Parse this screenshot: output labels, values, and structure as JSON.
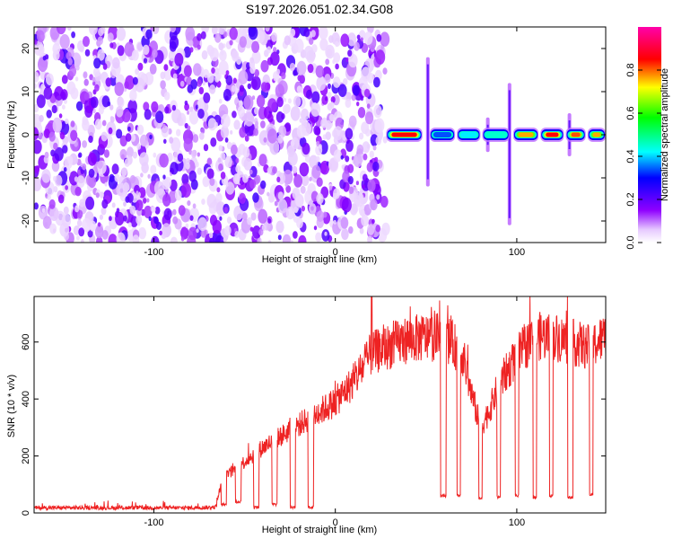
{
  "chart_data": [
    {
      "type": "heatmap",
      "title": "S197.2026.051.02.34.G08",
      "xlabel": "Height of straight line (km)",
      "ylabel": "Frequency (Hz)",
      "xlim": [
        -166,
        149
      ],
      "ylim": [
        -25,
        25
      ],
      "xticks": [
        -100,
        0,
        100
      ],
      "yticks": [
        -20,
        -10,
        0,
        10,
        20
      ],
      "colorbar": {
        "label": "Normalized spectral amplitude",
        "range": [
          0.0,
          1.0
        ],
        "ticks": [
          0.0,
          0.2,
          0.4,
          0.6,
          0.8
        ],
        "tick_labels": [
          "0.0",
          "0.2",
          "0.4",
          "0.6",
          "0.8"
        ],
        "colormap": [
          "#ffffff",
          "#8f00ff",
          "#0000ff",
          "#00ffff",
          "#00ff00",
          "#ffff00",
          "#ff0000",
          "#ff00aa"
        ]
      },
      "noise_region_x": [
        -166,
        28
      ],
      "signal_frequency_hz": 0,
      "signal_segments": [
        {
          "x0": 28,
          "x1": 48,
          "amplitude": 0.95
        },
        {
          "x0": 52,
          "x1": 66,
          "amplitude": 0.45
        },
        {
          "x0": 67,
          "x1": 80,
          "amplitude": 0.55
        },
        {
          "x0": 81,
          "x1": 96,
          "amplitude": 0.6
        },
        {
          "x0": 98,
          "x1": 112,
          "amplitude": 0.85
        },
        {
          "x0": 113,
          "x1": 126,
          "amplitude": 0.95
        },
        {
          "x0": 127,
          "x1": 138,
          "amplitude": 0.9
        },
        {
          "x0": 139,
          "x1": 149,
          "amplitude": 0.85
        }
      ],
      "vertical_streaks": [
        {
          "x": 51,
          "fmin": -12,
          "fmax": 18
        },
        {
          "x": 96,
          "fmin": -21,
          "fmax": 12
        },
        {
          "x": 84,
          "fmin": -4,
          "fmax": 4
        },
        {
          "x": 129,
          "fmin": -5,
          "fmax": 5
        }
      ]
    },
    {
      "type": "line",
      "xlabel": "Height of straight line (km)",
      "ylabel": "SNR (10 * v/v)",
      "xlim": [
        -166,
        149
      ],
      "ylim": [
        0,
        760
      ],
      "xticks": [
        -100,
        0,
        100
      ],
      "yticks": [
        0,
        200,
        400,
        600
      ],
      "series": [
        {
          "name": "SNR",
          "color": "#ee2222",
          "trend_x": [
            -166,
            -80,
            -66,
            -62,
            -40,
            -20,
            0,
            10,
            20,
            40,
            60,
            70,
            75,
            80,
            85,
            90,
            100,
            110,
            120,
            130,
            140,
            149
          ],
          "trend_y": [
            18,
            18,
            20,
            120,
            230,
            310,
            390,
            460,
            560,
            610,
            620,
            560,
            420,
            300,
            360,
            450,
            550,
            620,
            620,
            600,
            580,
            620
          ],
          "dropouts": [
            {
              "x0": 58,
              "x1": 61,
              "value": 60
            },
            {
              "x0": 67,
              "x1": 69,
              "value": 60
            },
            {
              "x0": 79,
              "x1": 81,
              "value": 50
            },
            {
              "x0": 89,
              "x1": 91,
              "value": 55
            },
            {
              "x0": 99,
              "x1": 101,
              "value": 60
            },
            {
              "x0": 109,
              "x1": 111,
              "value": 55
            },
            {
              "x0": 118,
              "x1": 120,
              "value": 60
            },
            {
              "x0": 128,
              "x1": 131,
              "value": 55
            },
            {
              "x0": 140,
              "x1": 142,
              "value": 65
            }
          ],
          "early_dips": [
            {
              "x0": -63,
              "x1": -60,
              "value": 30
            },
            {
              "x0": -55,
              "x1": -52,
              "value": 40
            },
            {
              "x0": -45,
              "x1": -42,
              "value": 20
            },
            {
              "x0": -35,
              "x1": -32,
              "value": 30
            },
            {
              "x0": -25,
              "x1": -22,
              "value": 20
            },
            {
              "x0": -15,
              "x1": -12,
              "value": 20
            }
          ],
          "peak": {
            "x": 20,
            "value": 760
          }
        }
      ]
    }
  ]
}
